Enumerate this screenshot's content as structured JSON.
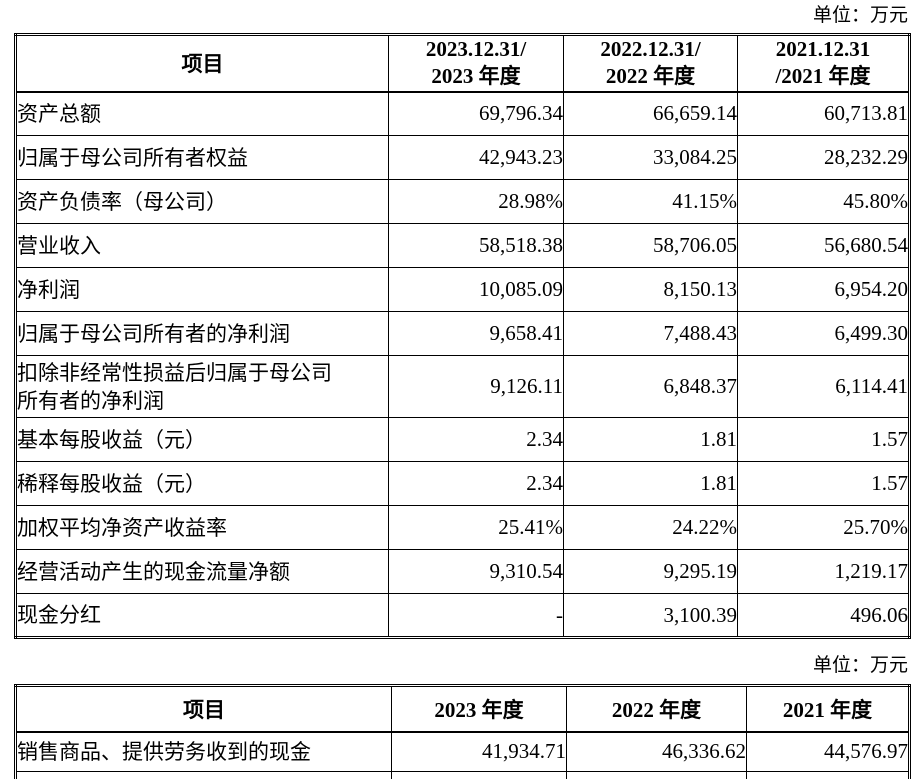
{
  "unit_label": "单位：万元",
  "summary_table": {
    "unit_label": "单位：万元",
    "header": {
      "item": "项目",
      "col_2023": {
        "line1": "2023.12.31/",
        "line2": "2023 年度"
      },
      "col_2022": {
        "line1": "2022.12.31/",
        "line2": "2022 年度"
      },
      "col_2021": {
        "line1": "2021.12.31",
        "line2": "/2021 年度"
      }
    },
    "rows": [
      {
        "label": "资产总额",
        "values": [
          "69,796.34",
          "66,659.14",
          "60,713.81"
        ]
      },
      {
        "label": "归属于母公司所有者权益",
        "values": [
          "42,943.23",
          "33,084.25",
          "28,232.29"
        ]
      },
      {
        "label": "资产负债率（母公司）",
        "values": [
          "28.98%",
          "41.15%",
          "45.80%"
        ]
      },
      {
        "label": "营业收入",
        "values": [
          "58,518.38",
          "58,706.05",
          "56,680.54"
        ]
      },
      {
        "label": "净利润",
        "values": [
          "10,085.09",
          "8,150.13",
          "6,954.20"
        ]
      },
      {
        "label": "归属于母公司所有者的净利润",
        "values": [
          "9,658.41",
          "7,488.43",
          "6,499.30"
        ]
      },
      {
        "label": "扣除非经常性损益后归属于母公司\n所有者的净利润",
        "values": [
          "9,126.11",
          "6,848.37",
          "6,114.41"
        ]
      },
      {
        "label": "基本每股收益（元）",
        "values": [
          "2.34",
          "1.81",
          "1.57"
        ]
      },
      {
        "label": "稀释每股收益（元）",
        "values": [
          "2.34",
          "1.81",
          "1.57"
        ]
      },
      {
        "label": "加权平均净资产收益率",
        "values": [
          "25.41%",
          "24.22%",
          "25.70%"
        ]
      },
      {
        "label": "经营活动产生的现金流量净额",
        "values": [
          "9,310.54",
          "9,295.19",
          "1,219.17"
        ]
      },
      {
        "label": "现金分红",
        "values": [
          "-",
          "3,100.39",
          "496.06"
        ]
      }
    ]
  },
  "cashflow_table": {
    "unit_label": "单位：万元",
    "header": {
      "item": "项目",
      "col_2023": "2023 年度",
      "col_2022": "2022 年度",
      "col_2021": "2021 年度"
    },
    "rows": [
      {
        "label": "销售商品、提供劳务收到的现金",
        "values": [
          "41,934.71",
          "46,336.62",
          "44,576.97"
        ]
      }
    ]
  }
}
